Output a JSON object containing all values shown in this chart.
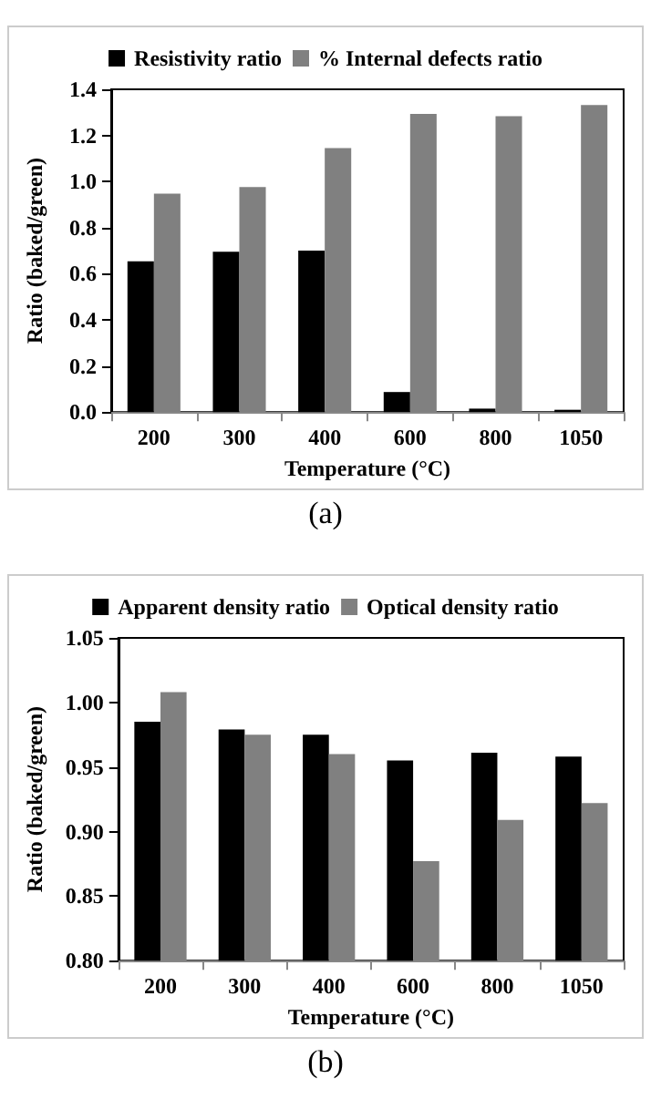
{
  "chart_data": [
    {
      "type": "bar",
      "categories": [
        "200",
        "300",
        "400",
        "600",
        "800",
        "1050"
      ],
      "xlabel": "Temperature (°C)",
      "ylabel": "Ratio (baked/green)",
      "ylim": [
        0,
        1.4
      ],
      "yticks": [
        {
          "value": 0,
          "label": "0.0"
        },
        0.2,
        0.4,
        0.6,
        0.8,
        {
          "value": 1,
          "label": "1.0"
        },
        1.2,
        1.4
      ],
      "legend": "top",
      "grid": false,
      "annotations": [
        "(a)"
      ],
      "series": [
        {
          "name": "Resistivity ratio",
          "color": "#000000",
          "values": [
            0.654,
            0.695,
            0.7,
            0.087,
            0.015,
            0.01
          ]
        },
        {
          "name": "% Internal defects ratio",
          "color": "#808080",
          "values": [
            0.947,
            0.976,
            1.145,
            1.293,
            1.283,
            1.332
          ]
        }
      ]
    },
    {
      "type": "bar",
      "categories": [
        "200",
        "300",
        "400",
        "600",
        "800",
        "1050"
      ],
      "xlabel": "Temperature (°C)",
      "ylabel": "Ratio (baked/green)",
      "ylim": [
        0.8,
        1.05
      ],
      "yticks": [
        {
          "value": 0.8,
          "label": "0.80"
        },
        0.85,
        {
          "value": 0.9,
          "label": "0.90"
        },
        0.95,
        {
          "value": 1,
          "label": "1.00"
        },
        1.05
      ],
      "legend": "top",
      "grid": false,
      "annotations": [
        "(b)"
      ],
      "series": [
        {
          "name": "Apparent density ratio",
          "color": "#000000",
          "values": [
            0.985,
            0.979,
            0.975,
            0.955,
            0.961,
            0.958
          ]
        },
        {
          "name": "Optical density ratio",
          "color": "#808080",
          "values": [
            1.008,
            0.975,
            0.96,
            0.877,
            0.909,
            0.922
          ]
        }
      ]
    }
  ]
}
